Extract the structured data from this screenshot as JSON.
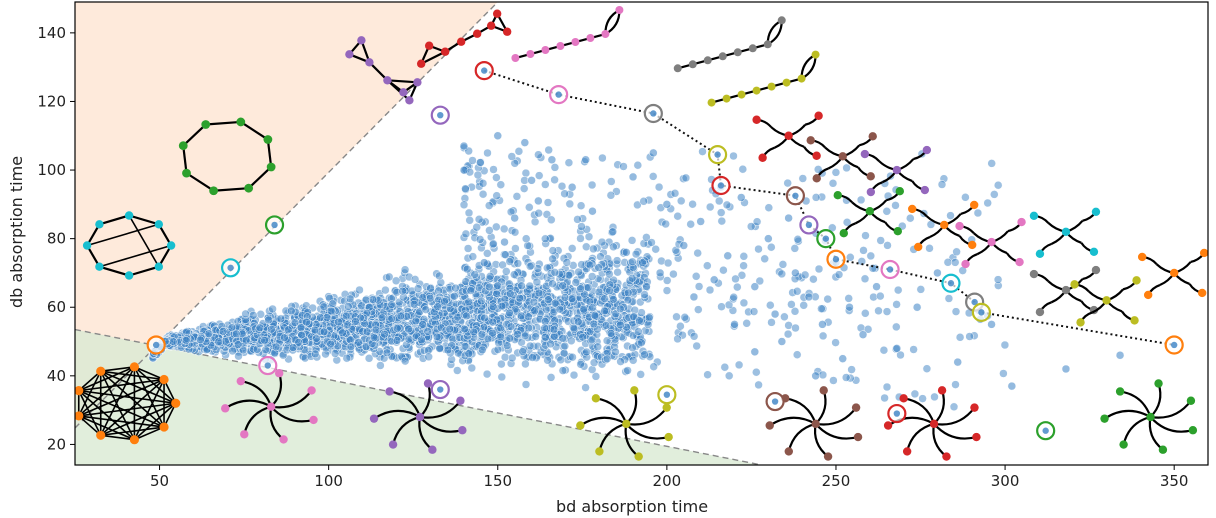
{
  "chart_data": {
    "type": "scatter",
    "xlabel": "bd absorption time",
    "ylabel": "db absorption time",
    "xlim": [
      25,
      360
    ],
    "ylim": [
      14,
      149
    ],
    "x_ticks": [
      50,
      100,
      150,
      200,
      250,
      300,
      350
    ],
    "y_ticks": [
      20,
      40,
      60,
      80,
      100,
      120,
      140
    ],
    "grid": false,
    "legend": "none",
    "colors": {
      "points": "#3b82c4",
      "upper_region": "#fde3cf",
      "lower_region": "#d9ead3",
      "boundary": "#888888",
      "frontier": "#111111"
    },
    "regions": [
      {
        "region": "upper-left",
        "fill": "#fde3cf",
        "boundary": {
          "from": [
            25,
            24.8
          ],
          "to": [
            150,
            149
          ]
        }
      },
      {
        "region": "lower-left",
        "fill": "#d9ead3",
        "boundary": {
          "from": [
            25,
            53.5
          ],
          "to": [
            228,
            14
          ]
        }
      }
    ],
    "dense_cloud": {
      "count": 3000,
      "x_range": [
        48,
        195
      ],
      "center_band": {
        "at_x_50": [
          48,
          52
        ],
        "at_x_150": [
          42,
          72
        ],
        "at_x_195": [
          38,
          76
        ]
      }
    },
    "series": [
      {
        "points": [
          [
            146,
            73
          ],
          [
            152,
            79
          ],
          [
            155,
            86
          ],
          [
            162,
            91
          ],
          [
            160,
            97
          ],
          [
            166,
            103
          ],
          [
            172,
            95
          ],
          [
            178,
            88
          ],
          [
            184,
            82
          ],
          [
            190,
            98
          ],
          [
            196,
            105
          ],
          [
            200,
            90
          ],
          [
            205,
            78
          ],
          [
            210,
            85
          ],
          [
            214,
            68
          ],
          [
            218,
            75
          ],
          [
            222,
            92
          ],
          [
            226,
            66
          ],
          [
            230,
            80
          ],
          [
            232,
            58
          ],
          [
            236,
            86
          ],
          [
            238,
            70
          ],
          [
            242,
            63
          ],
          [
            246,
            55
          ],
          [
            250,
            73
          ],
          [
            254,
            60
          ],
          [
            258,
            52
          ],
          [
            262,
            66
          ],
          [
            268,
            48
          ],
          [
            274,
            60
          ],
          [
            280,
            70
          ],
          [
            286,
            44
          ],
          [
            296,
            55
          ],
          [
            302,
            37
          ],
          [
            318,
            42
          ],
          [
            334,
            46
          ],
          [
            140,
            107
          ],
          [
            150,
            110
          ],
          [
            158,
            108
          ],
          [
            176,
            103
          ],
          [
            188,
            76
          ],
          [
            198,
            70
          ],
          [
            208,
            63
          ],
          [
            220,
            55
          ],
          [
            226,
            47
          ],
          [
            234,
            50
          ],
          [
            244,
            40
          ],
          [
            252,
            45
          ]
        ]
      }
    ],
    "highlighted": [
      {
        "x": 49,
        "y": 49,
        "color": "#ff7f0e"
      },
      {
        "x": 71,
        "y": 71.5,
        "color": "#17becf"
      },
      {
        "x": 84,
        "y": 84,
        "color": "#2ca02c"
      },
      {
        "x": 82,
        "y": 43,
        "color": "#e377c2"
      },
      {
        "x": 133,
        "y": 116,
        "color": "#9467bd"
      },
      {
        "x": 133,
        "y": 36,
        "color": "#9467bd"
      },
      {
        "x": 146,
        "y": 129,
        "color": "#d62728"
      },
      {
        "x": 168,
        "y": 122,
        "color": "#e377c2"
      },
      {
        "x": 196,
        "y": 116.5,
        "color": "#7f7f7f"
      },
      {
        "x": 200,
        "y": 34.5,
        "color": "#bcbd22"
      },
      {
        "x": 215,
        "y": 104.5,
        "color": "#bcbd22"
      },
      {
        "x": 216,
        "y": 95.5,
        "color": "#d62728"
      },
      {
        "x": 232,
        "y": 32.5,
        "color": "#8c564b"
      },
      {
        "x": 238,
        "y": 92.5,
        "color": "#8c564b"
      },
      {
        "x": 242,
        "y": 84,
        "color": "#9467bd"
      },
      {
        "x": 247,
        "y": 80,
        "color": "#2ca02c"
      },
      {
        "x": 250,
        "y": 74,
        "color": "#ff7f0e"
      },
      {
        "x": 266,
        "y": 71,
        "color": "#e377c2"
      },
      {
        "x": 268,
        "y": 29,
        "color": "#d62728"
      },
      {
        "x": 284,
        "y": 67,
        "color": "#17becf"
      },
      {
        "x": 291,
        "y": 61.5,
        "color": "#7f7f7f"
      },
      {
        "x": 293,
        "y": 58.5,
        "color": "#bcbd22"
      },
      {
        "x": 312,
        "y": 24,
        "color": "#2ca02c"
      },
      {
        "x": 350,
        "y": 49,
        "color": "#ff7f0e"
      }
    ],
    "frontier": [
      [
        146,
        129
      ],
      [
        168,
        122
      ],
      [
        196,
        116.5
      ],
      [
        215,
        104.5
      ],
      [
        216,
        95.5
      ],
      [
        238,
        92.5
      ],
      [
        242,
        84
      ],
      [
        247,
        80
      ],
      [
        250,
        74
      ],
      [
        266,
        71
      ],
      [
        284,
        67
      ],
      [
        291,
        61.5
      ],
      [
        293,
        58.5
      ],
      [
        350,
        49
      ]
    ],
    "insets": [
      {
        "type": "complete",
        "color": "#ff7f0e",
        "at": [
          40,
          32
        ]
      },
      {
        "type": "star-curved",
        "color": "#e377c2",
        "at": [
          83,
          31
        ]
      },
      {
        "type": "star-curved",
        "color": "#9467bd",
        "at": [
          127,
          28
        ]
      },
      {
        "type": "star-curved",
        "color": "#bcbd22",
        "at": [
          188,
          26
        ]
      },
      {
        "type": "star-curved",
        "color": "#8c564b",
        "at": [
          244,
          26
        ]
      },
      {
        "type": "star-curved",
        "color": "#d62728",
        "at": [
          279,
          26
        ]
      },
      {
        "type": "star-curved",
        "color": "#2ca02c",
        "at": [
          343,
          28
        ]
      },
      {
        "type": "cycle-chords",
        "color": "#17becf",
        "at": [
          41,
          78
        ]
      },
      {
        "type": "cycle",
        "color": "#2ca02c",
        "at": [
          70,
          104
        ]
      },
      {
        "type": "triangles-chain",
        "color": "#9467bd",
        "at": [
          115,
          125
        ]
      },
      {
        "type": "triangle-chain",
        "color": "#d62728",
        "at": [
          138,
          138
        ]
      },
      {
        "type": "path-loop",
        "color": "#e377c2",
        "at": [
          170,
          135
        ]
      },
      {
        "type": "path-loop",
        "color": "#7f7f7f",
        "at": [
          218,
          132
        ]
      },
      {
        "type": "path-loop",
        "color": "#bcbd22",
        "at": [
          228,
          122
        ]
      },
      {
        "type": "tree",
        "color": "#d62728",
        "at": [
          236,
          110
        ]
      },
      {
        "type": "tree",
        "color": "#8c564b",
        "at": [
          252,
          104
        ]
      },
      {
        "type": "tree",
        "color": "#9467bd",
        "at": [
          268,
          100
        ]
      },
      {
        "type": "tree",
        "color": "#2ca02c",
        "at": [
          260,
          88
        ]
      },
      {
        "type": "tree",
        "color": "#ff7f0e",
        "at": [
          282,
          84
        ]
      },
      {
        "type": "tree",
        "color": "#e377c2",
        "at": [
          296,
          79
        ]
      },
      {
        "type": "tree",
        "color": "#17becf",
        "at": [
          318,
          82
        ]
      },
      {
        "type": "tree",
        "color": "#7f7f7f",
        "at": [
          318,
          65
        ]
      },
      {
        "type": "tree",
        "color": "#bcbd22",
        "at": [
          330,
          62
        ]
      },
      {
        "type": "tree",
        "color": "#ff7f0e",
        "at": [
          350,
          70
        ]
      }
    ]
  }
}
